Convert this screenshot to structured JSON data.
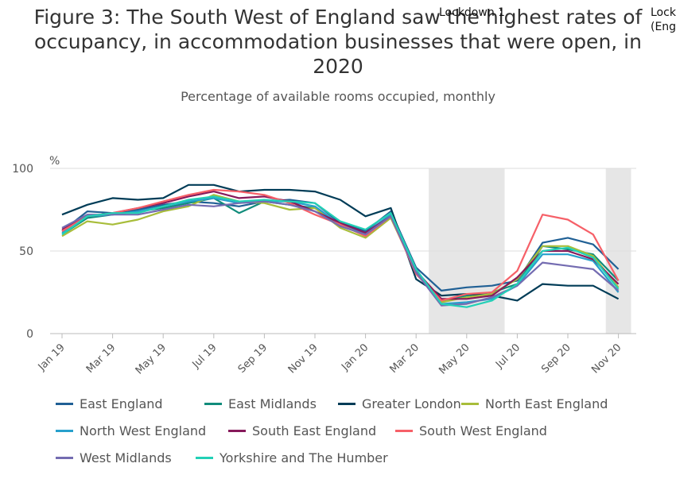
{
  "title_lines": [
    "Figure 3: The South West of England saw the highest rates of",
    "occupancy, in accommodation businesses that were open, in",
    "2020"
  ],
  "subtitle": "Percentage of available rooms occupied, monthly",
  "annotations": [
    {
      "lines": [
        "Lockdown 1"
      ]
    },
    {
      "lines": [
        "Lock",
        "(Eng"
      ]
    }
  ],
  "chart_data": {
    "type": "line",
    "ylabel": "%",
    "ylim": [
      0,
      100
    ],
    "yticks": [
      0,
      50,
      100
    ],
    "x": [
      "Jan 19",
      "Feb 19",
      "Mar 19",
      "Apr 19",
      "May 19",
      "Jun 19",
      "Jul 19",
      "Aug 19",
      "Sep 19",
      "Oct 19",
      "Nov 19",
      "Dec 19",
      "Jan 20",
      "Feb 20",
      "Mar 20",
      "Apr 20",
      "May 20",
      "Jun 20",
      "Jul 20",
      "Aug 20",
      "Sep 20",
      "Oct 20",
      "Nov 20"
    ],
    "xticks": [
      "Jan 19",
      "Mar 19",
      "May 19",
      "Jul 19",
      "Sep 19",
      "Nov 19",
      "Jan 20",
      "Mar 20",
      "May 20",
      "Jul 20",
      "Sep 20",
      "Nov 20"
    ],
    "shaded_periods": [
      [
        "Apr 20",
        "Jun 20"
      ],
      [
        "Nov 20",
        "Nov 20"
      ]
    ],
    "series": [
      {
        "name": "East England",
        "color": "#206095",
        "values": [
          62,
          74,
          73,
          75,
          78,
          80,
          79,
          77,
          80,
          81,
          79,
          67,
          62,
          74,
          40,
          26,
          28,
          29,
          32,
          55,
          58,
          54,
          39
        ]
      },
      {
        "name": "East Midlands",
        "color": "#118c7b",
        "values": [
          60,
          70,
          72,
          74,
          76,
          79,
          82,
          73,
          80,
          78,
          76,
          66,
          60,
          72,
          38,
          20,
          23,
          25,
          30,
          53,
          51,
          48,
          32
        ]
      },
      {
        "name": "Greater London",
        "color": "#003c57",
        "values": [
          72,
          78,
          82,
          81,
          82,
          90,
          90,
          86,
          87,
          87,
          86,
          81,
          71,
          76,
          33,
          23,
          24,
          23,
          20,
          30,
          29,
          29,
          21
        ]
      },
      {
        "name": "North East England",
        "color": "#a8bd3a",
        "values": [
          59,
          68,
          66,
          69,
          74,
          77,
          84,
          80,
          79,
          75,
          76,
          64,
          58,
          70,
          37,
          19,
          22,
          24,
          33,
          53,
          53,
          47,
          28
        ]
      },
      {
        "name": "North West England",
        "color": "#27a0cc",
        "values": [
          61,
          71,
          72,
          74,
          77,
          80,
          82,
          79,
          80,
          80,
          77,
          66,
          61,
          72,
          37,
          18,
          19,
          21,
          29,
          48,
          48,
          44,
          25
        ]
      },
      {
        "name": "South East England",
        "color": "#871a5b",
        "values": [
          63,
          71,
          73,
          76,
          79,
          83,
          86,
          82,
          83,
          80,
          74,
          67,
          61,
          71,
          38,
          21,
          21,
          23,
          34,
          50,
          50,
          45,
          30
        ]
      },
      {
        "name": "South West England",
        "color": "#f66068",
        "values": [
          62,
          71,
          73,
          76,
          80,
          84,
          87,
          86,
          84,
          79,
          72,
          66,
          59,
          71,
          36,
          20,
          24,
          25,
          38,
          72,
          69,
          60,
          32
        ]
      },
      {
        "name": "West Midlands",
        "color": "#746cb1",
        "values": [
          64,
          72,
          72,
          72,
          75,
          78,
          77,
          79,
          80,
          78,
          74,
          65,
          60,
          71,
          37,
          17,
          18,
          22,
          29,
          43,
          41,
          39,
          26
        ]
      },
      {
        "name": "Yorkshire and The Humber",
        "color": "#22d0b6",
        "values": [
          60,
          71,
          73,
          73,
          77,
          81,
          83,
          80,
          81,
          80,
          79,
          68,
          63,
          73,
          39,
          18,
          16,
          20,
          30,
          50,
          52,
          46,
          27
        ]
      }
    ]
  }
}
